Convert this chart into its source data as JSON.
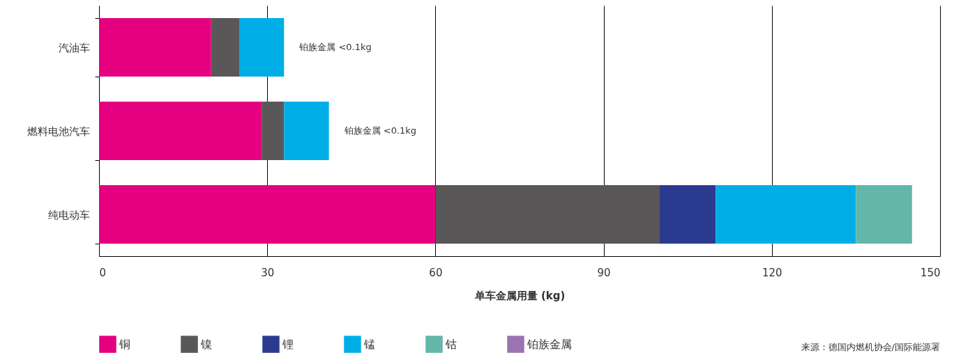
{
  "chart_data": {
    "type": "bar",
    "orientation": "horizontal",
    "stacked": true,
    "categories": [
      "汽油车",
      "燃料电池汽车",
      "纯电动车"
    ],
    "series": [
      {
        "name": "铜",
        "color": "#e4007f",
        "values": [
          20,
          29,
          60
        ]
      },
      {
        "name": "镍",
        "color": "#595757",
        "values": [
          5,
          4,
          40
        ]
      },
      {
        "name": "锂",
        "color": "#2a3b8f",
        "values": [
          null,
          null,
          10
        ]
      },
      {
        "name": "锰",
        "color": "#00aee7",
        "values": [
          8,
          8,
          25
        ]
      },
      {
        "name": "钴",
        "color": "#63b7a8",
        "values": [
          null,
          null,
          10
        ]
      },
      {
        "name": "铂族金属",
        "color": "#9a73b0",
        "values": [
          null,
          null,
          null
        ]
      }
    ],
    "xlim": [
      0,
      150
    ],
    "xticks": [
      0,
      30,
      60,
      90,
      120,
      150
    ],
    "grid": "x",
    "xlabel": "单车金属用量 (kg)",
    "legend": "bottom",
    "annotations": [
      {
        "text": "铂族金属 <0.1kg",
        "x": 33,
        "y": "汽油车"
      },
      {
        "text": "铂族金属 <0.1kg",
        "x": 41,
        "y": "燃料电池汽车"
      },
      "来源：德国内燃机协会/国际能源署"
    ]
  }
}
